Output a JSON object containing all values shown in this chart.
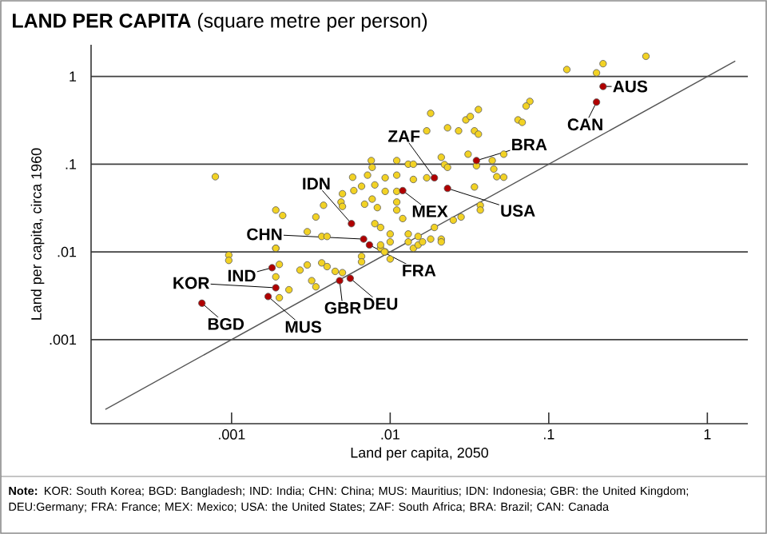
{
  "chart_data": {
    "type": "scatter",
    "title": "**LAND PER CAPITA** (square metre per person)",
    "xlabel": "Land per capita, 2050",
    "ylabel": "Land per capita, circa 1960",
    "log": "xy",
    "grid": "y",
    "marker": "circle",
    "xlim": [
      0.00013,
      1.8
    ],
    "ylim": [
      0.00011,
      2.3
    ],
    "xticks": [
      {
        "value": 0.001,
        "label": ".001"
      },
      {
        "value": 0.01,
        "label": ".01"
      },
      {
        "value": 0.1,
        "label": ".1"
      },
      1
    ],
    "yticks": [
      {
        "value": 0.001,
        "label": ".001"
      },
      {
        "value": 0.01,
        "label": ".01"
      },
      {
        "value": 0.1,
        "label": ".1"
      },
      1
    ],
    "series": [
      {
        "color": "#f2d224",
        "x": [
          0.13,
          0.2,
          0.22,
          0.41,
          0.076,
          0.072,
          0.064,
          0.068,
          0.018,
          0.03,
          0.032,
          0.036,
          0.023,
          0.027,
          0.034,
          0.036,
          0.017,
          0.031,
          0.044,
          0.052,
          0.021,
          0.022,
          0.023,
          0.035,
          0.045,
          0.047,
          0.052,
          0.034,
          0.037,
          0.037,
          0.028,
          0.025,
          0.019,
          0.021,
          0.0076,
          0.0077,
          0.011,
          0.013,
          0.014,
          0.0072,
          0.0058,
          0.0093,
          0.011,
          0.014,
          0.017,
          0.0059,
          0.0066,
          0.008,
          0.0093,
          0.011,
          0.005,
          0.0049,
          0.005,
          0.0069,
          0.0077,
          0.0083,
          0.011,
          0.011,
          0.012,
          0.0034,
          0.0038,
          0.0019,
          0.0021,
          0.008,
          0.0087,
          0.01,
          0.013,
          0.015,
          0.003,
          0.0037,
          0.004,
          0.0019,
          0.00079,
          0.0087,
          0.0093,
          0.01,
          0.014,
          0.015,
          0.018,
          0.00096,
          0.00096,
          0.0019,
          0.002,
          0.0019,
          0.0027,
          0.003,
          0.0037,
          0.004,
          0.0023,
          0.002,
          0.0034,
          0.0032,
          0.0045,
          0.005,
          0.0066,
          0.0066,
          0.0087,
          0.0092,
          0.01,
          0.013,
          0.016,
          0.021
        ],
        "values": [
          1.2,
          1.1,
          1.4,
          1.7,
          0.52,
          0.46,
          0.32,
          0.3,
          0.38,
          0.32,
          0.35,
          0.42,
          0.26,
          0.24,
          0.24,
          0.22,
          0.24,
          0.13,
          0.11,
          0.13,
          0.12,
          0.099,
          0.092,
          0.096,
          0.088,
          0.072,
          0.071,
          0.055,
          0.034,
          0.03,
          0.025,
          0.023,
          0.019,
          0.014,
          0.11,
          0.092,
          0.11,
          0.1,
          0.1,
          0.075,
          0.071,
          0.07,
          0.075,
          0.067,
          0.07,
          0.05,
          0.056,
          0.058,
          0.049,
          0.049,
          0.046,
          0.037,
          0.033,
          0.035,
          0.04,
          0.032,
          0.037,
          0.03,
          0.024,
          0.025,
          0.034,
          0.03,
          0.026,
          0.021,
          0.019,
          0.016,
          0.016,
          0.015,
          0.017,
          0.015,
          0.015,
          0.011,
          0.072,
          0.011,
          0.01,
          0.013,
          0.011,
          0.012,
          0.014,
          0.0092,
          0.008,
          0.011,
          0.0072,
          0.0052,
          0.0062,
          0.0071,
          0.0075,
          0.0068,
          0.0037,
          0.003,
          0.004,
          0.0047,
          0.006,
          0.0058,
          0.0089,
          0.0077,
          0.012,
          0.01,
          0.0083,
          0.013,
          0.013,
          0.013
        ]
      },
      {
        "color": "#b00000",
        "x": [
          0.22,
          0.2,
          0.035,
          0.019,
          0.012,
          0.023,
          0.0057,
          0.0068,
          0.0074,
          0.0018,
          0.0019,
          0.00065,
          0.0017,
          0.0048,
          0.0056
        ],
        "values": [
          0.77,
          0.51,
          0.11,
          0.07,
          0.05,
          0.053,
          0.021,
          0.014,
          0.012,
          0.0066,
          0.0039,
          0.0026,
          0.0031,
          0.0047,
          0.005
        ]
      },
      {
        "type": "line",
        "marker": "none",
        "color": "#555555",
        "x": [
          0.00016,
          1.5
        ],
        "values": [
          0.00016,
          1.5
        ]
      }
    ],
    "annotations": [
      {
        "text": "AUS",
        "x": 0.22,
        "y": 0.77
      },
      {
        "text": "CAN",
        "x": 0.2,
        "y": 0.51
      },
      {
        "text": "BRA",
        "x": 0.035,
        "y": 0.11
      },
      {
        "text": "ZAF",
        "x": 0.019,
        "y": 0.07
      },
      {
        "text": "MEX",
        "x": 0.012,
        "y": 0.05
      },
      {
        "text": "USA",
        "x": 0.023,
        "y": 0.053
      },
      {
        "text": "IDN",
        "x": 0.0057,
        "y": 0.021
      },
      {
        "text": "CHN",
        "x": 0.0068,
        "y": 0.014
      },
      {
        "text": "FRA",
        "x": 0.0074,
        "y": 0.012
      },
      {
        "text": "IND",
        "x": 0.0018,
        "y": 0.0066
      },
      {
        "text": "KOR",
        "x": 0.0019,
        "y": 0.0039
      },
      {
        "text": "BGD",
        "x": 0.00065,
        "y": 0.0026
      },
      {
        "text": "MUS",
        "x": 0.0017,
        "y": 0.0031
      },
      {
        "text": "GBR",
        "x": 0.0048,
        "y": 0.0047
      },
      {
        "text": "DEU",
        "x": 0.0056,
        "y": 0.005
      },
      "**Note:** KOR: South Korea; BGD: Bangladesh; IND: India; CHN: China; MUS: Mauritius; IDN: Indonesia; GBR: the United Kingdom; DEU:Germany; FRA: France; MEX: Mexico; USA: the United States; ZAF: South Africa; BRA: Brazil; CAN: Canada"
    ]
  }
}
